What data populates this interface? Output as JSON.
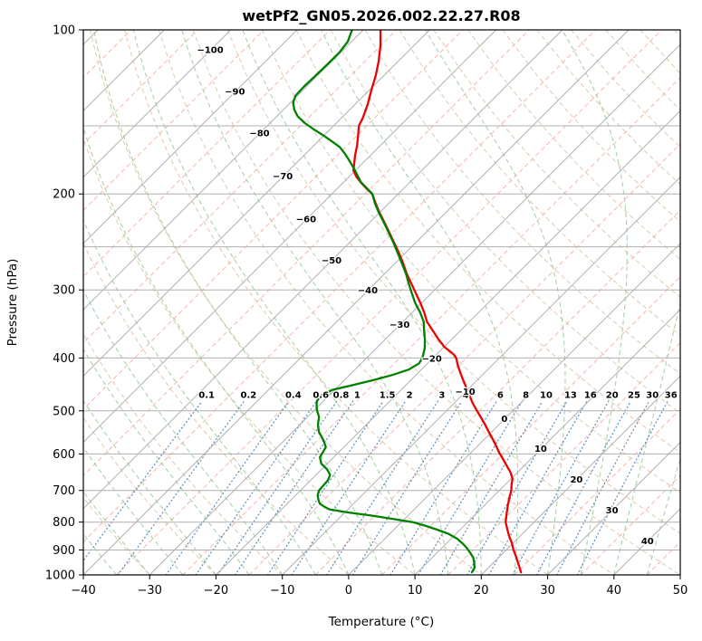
{
  "chart_data": {
    "type": "skewt-log-p",
    "title": "wetPf2_GN05.2026.002.22.27.R08",
    "xlabel": "Temperature (°C)",
    "ylabel": "Pressure (hPa)",
    "t_range_c": [
      -40,
      50
    ],
    "p_range_hpa": [
      100,
      1000
    ],
    "skew_deg": 45,
    "x_ticks_c": [
      -40,
      -30,
      -20,
      -10,
      0,
      10,
      20,
      30,
      40,
      50
    ],
    "y_ticks_hpa": [
      100,
      200,
      300,
      400,
      500,
      600,
      700,
      800,
      900,
      1000
    ],
    "pressure_gridlines_hpa": [
      100,
      150,
      200,
      250,
      300,
      400,
      500,
      600,
      700,
      800,
      900,
      1000
    ],
    "isotherms": {
      "start": -130,
      "end": 50,
      "minor_step": 5,
      "major_every": 10
    },
    "dry_adiabats_theta_c": {
      "start": -40,
      "end": 190,
      "step": 10
    },
    "moist_adiabats_tw_c": {
      "start": -40,
      "end": 60,
      "step": 5
    },
    "mixing_ratio_g_kg": [
      0.1,
      0.2,
      0.4,
      0.6,
      0.8,
      1,
      1.5,
      2,
      3,
      4,
      6,
      8,
      10,
      13,
      16,
      20,
      25,
      30,
      36
    ],
    "mixing_ratio_top_p_hpa": 480,
    "mixing_ratio_label_p_hpa": 468,
    "isotherm_labels": [
      [
        -100,
        109
      ],
      [
        -90,
        130
      ],
      [
        -80,
        155
      ],
      [
        -70,
        186
      ],
      [
        -60,
        223
      ],
      [
        -50,
        265
      ],
      [
        -40,
        301
      ],
      [
        -30,
        348
      ],
      [
        -20,
        402
      ],
      [
        -10,
        462
      ],
      [
        0,
        518
      ],
      [
        10,
        588
      ],
      [
        20,
        669
      ],
      [
        30,
        762
      ],
      [
        40,
        868
      ]
    ],
    "series": [
      {
        "name": "temperature",
        "color": "#ee0000",
        "points": [
          [
            100,
            -77.4
          ],
          [
            107,
            -75.0
          ],
          [
            114,
            -73.0
          ],
          [
            121,
            -71.3
          ],
          [
            129,
            -69.7
          ],
          [
            137,
            -68.1
          ],
          [
            145,
            -66.8
          ],
          [
            150,
            -66.2
          ],
          [
            157,
            -64.7
          ],
          [
            163,
            -63.5
          ],
          [
            170,
            -62.3
          ],
          [
            176,
            -61.2
          ],
          [
            181,
            -60.3
          ],
          [
            186,
            -58.9
          ],
          [
            191,
            -57.2
          ],
          [
            196,
            -55.4
          ],
          [
            200,
            -53.9
          ],
          [
            208,
            -52.0
          ],
          [
            216,
            -50.1
          ],
          [
            225,
            -47.9
          ],
          [
            235,
            -45.6
          ],
          [
            246,
            -43.2
          ],
          [
            257,
            -40.9
          ],
          [
            268,
            -38.8
          ],
          [
            280,
            -36.7
          ],
          [
            292,
            -34.5
          ],
          [
            304,
            -32.4
          ],
          [
            317,
            -30.2
          ],
          [
            330,
            -28.2
          ],
          [
            343,
            -26.4
          ],
          [
            356,
            -24.2
          ],
          [
            369,
            -22.1
          ],
          [
            382,
            -19.9
          ],
          [
            394,
            -17.4
          ],
          [
            400,
            -16.5
          ],
          [
            413,
            -15.1
          ],
          [
            427,
            -13.5
          ],
          [
            441,
            -11.9
          ],
          [
            455,
            -10.3
          ],
          [
            470,
            -8.7
          ],
          [
            485,
            -7.1
          ],
          [
            500,
            -5.4
          ],
          [
            516,
            -3.6
          ],
          [
            532,
            -1.9
          ],
          [
            548,
            -0.3
          ],
          [
            564,
            1.3
          ],
          [
            580,
            2.8
          ],
          [
            597,
            4.3
          ],
          [
            614,
            5.9
          ],
          [
            631,
            7.4
          ],
          [
            648,
            8.9
          ],
          [
            666,
            10.2
          ],
          [
            684,
            11.0
          ],
          [
            700,
            11.8
          ],
          [
            722,
            12.6
          ],
          [
            750,
            13.7
          ],
          [
            775,
            14.7
          ],
          [
            800,
            15.7
          ],
          [
            824,
            17.0
          ],
          [
            848,
            18.3
          ],
          [
            874,
            19.8
          ],
          [
            900,
            21.1
          ],
          [
            922,
            22.3
          ],
          [
            944,
            23.4
          ],
          [
            966,
            24.5
          ],
          [
            989,
            25.6
          ]
        ]
      },
      {
        "name": "dewpoint",
        "color": "#008000",
        "points": [
          [
            100,
            -81.7
          ],
          [
            105,
            -80.6
          ],
          [
            110,
            -80.2
          ],
          [
            115,
            -80.2
          ],
          [
            121,
            -80.3
          ],
          [
            127,
            -80.4
          ],
          [
            132,
            -80.3
          ],
          [
            136,
            -79.6
          ],
          [
            140,
            -78.4
          ],
          [
            144,
            -76.9
          ],
          [
            148,
            -74.9
          ],
          [
            152,
            -72.6
          ],
          [
            156,
            -70.2
          ],
          [
            160,
            -68.0
          ],
          [
            164,
            -65.9
          ],
          [
            169,
            -64.0
          ],
          [
            174,
            -62.3
          ],
          [
            179,
            -60.7
          ],
          [
            184,
            -59.2
          ],
          [
            190,
            -57.5
          ],
          [
            196,
            -55.3
          ],
          [
            200,
            -53.9
          ],
          [
            208,
            -52.1
          ],
          [
            216,
            -50.2
          ],
          [
            225,
            -48.0
          ],
          [
            235,
            -45.7
          ],
          [
            246,
            -43.3
          ],
          [
            257,
            -41.1
          ],
          [
            268,
            -39.0
          ],
          [
            280,
            -36.8
          ],
          [
            292,
            -34.9
          ],
          [
            304,
            -33.0
          ],
          [
            317,
            -31.0
          ],
          [
            330,
            -28.8
          ],
          [
            343,
            -26.9
          ],
          [
            356,
            -25.5
          ],
          [
            370,
            -24.0
          ],
          [
            384,
            -22.7
          ],
          [
            400,
            -21.6
          ],
          [
            409,
            -21.3
          ],
          [
            420,
            -21.9
          ],
          [
            430,
            -23.6
          ],
          [
            440,
            -25.9
          ],
          [
            449,
            -28.2
          ],
          [
            458,
            -30.4
          ],
          [
            469,
            -31.2
          ],
          [
            480,
            -31.0
          ],
          [
            490,
            -30.3
          ],
          [
            500,
            -29.5
          ],
          [
            513,
            -28.3
          ],
          [
            530,
            -27.3
          ],
          [
            546,
            -26.1
          ],
          [
            560,
            -24.7
          ],
          [
            572,
            -23.6
          ],
          [
            583,
            -22.7
          ],
          [
            595,
            -22.4
          ],
          [
            608,
            -22.1
          ],
          [
            625,
            -20.9
          ],
          [
            640,
            -19.2
          ],
          [
            655,
            -17.9
          ],
          [
            670,
            -17.4
          ],
          [
            685,
            -17.3
          ],
          [
            700,
            -17.2
          ],
          [
            714,
            -16.7
          ],
          [
            728,
            -15.9
          ],
          [
            740,
            -15.1
          ],
          [
            750,
            -13.9
          ],
          [
            758,
            -12.8
          ],
          [
            768,
            -9.5
          ],
          [
            778,
            -5.6
          ],
          [
            788,
            -2.2
          ],
          [
            800,
            1.7
          ],
          [
            812,
            4.1
          ],
          [
            826,
            6.5
          ],
          [
            841,
            8.9
          ],
          [
            858,
            10.9
          ],
          [
            875,
            12.4
          ],
          [
            893,
            13.8
          ],
          [
            911,
            15.0
          ],
          [
            930,
            16.2
          ],
          [
            950,
            17.1
          ],
          [
            970,
            17.9
          ],
          [
            989,
            18.2
          ]
        ]
      }
    ],
    "colors": {
      "temperature": "#ee0000",
      "dewpoint": "#008000",
      "isotherm_major": "#b0b0b0",
      "isotherm_minor": "#f7a69b",
      "pressure_line": "#b0b0b0",
      "dry_adiabat": "#d9bf9b",
      "moist_adiabat": "#8cc98c",
      "mixing_ratio": "#4a86b8",
      "label_negative": "#4682b4",
      "label_zero": "#808080",
      "label_positive": "#cc4125"
    }
  }
}
